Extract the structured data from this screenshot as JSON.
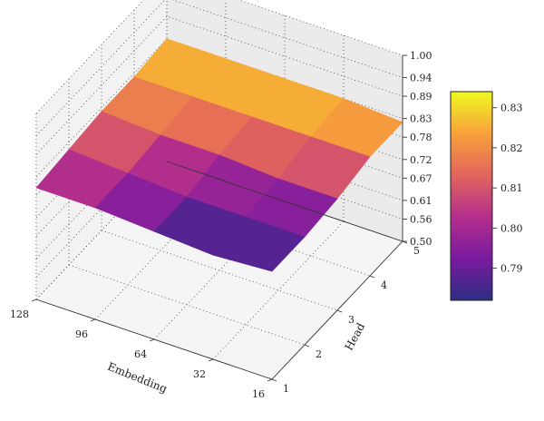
{
  "chart_data": {
    "type": "surface3d",
    "xlabel": "Embedding",
    "ylabel": "Head",
    "zlabel": "",
    "x_ticks": [
      "128",
      "96",
      "64",
      "32",
      "16"
    ],
    "y_ticks": [
      "1",
      "2",
      "3",
      "4",
      "5"
    ],
    "z_ticks": [
      "0.50",
      "0.56",
      "0.61",
      "0.67",
      "0.72",
      "0.78",
      "0.83",
      "0.89",
      "0.94",
      "1.00"
    ],
    "zlim": [
      0.5,
      1.0
    ],
    "colorbar": {
      "ticks": [
        "0.79",
        "0.80",
        "0.81",
        "0.82",
        "0.83"
      ],
      "range": [
        0.782,
        0.834
      ]
    },
    "grid": true,
    "values_by_head": [
      [
        0.8,
        0.8,
        0.79,
        0.78,
        0.79
      ],
      [
        0.81,
        0.8,
        0.79,
        0.79,
        0.79
      ],
      [
        0.82,
        0.81,
        0.81,
        0.8,
        0.8
      ],
      [
        0.82,
        0.82,
        0.82,
        0.82,
        0.82
      ],
      [
        0.83,
        0.83,
        0.83,
        0.83,
        0.82
      ]
    ]
  }
}
